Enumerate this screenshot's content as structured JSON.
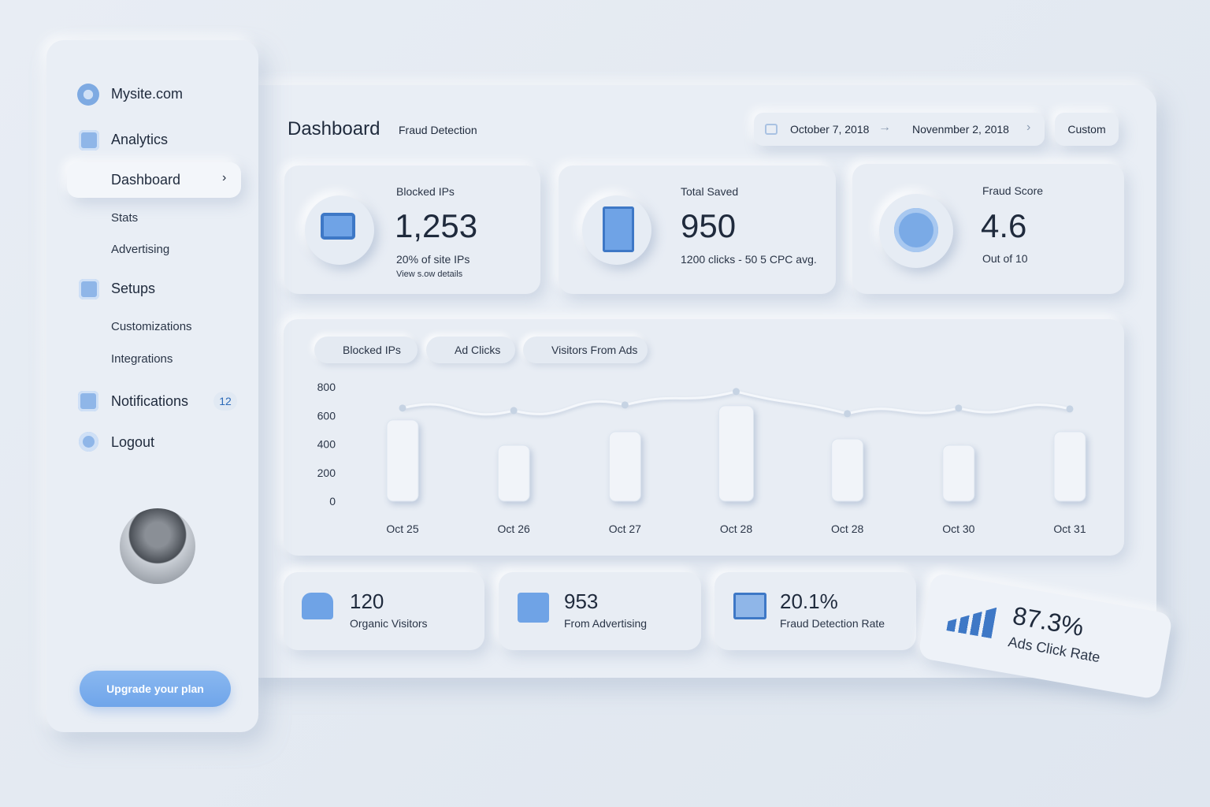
{
  "sidebar": {
    "brand": "Mysite.com",
    "nav": [
      "Analytics",
      "Dashboard",
      "Stats",
      "Advertising",
      "Setups",
      "Customizations",
      "Integrations",
      "Notifications",
      "Logout"
    ],
    "notifications_badge": "12",
    "upgrade_button": "Upgrade your plan"
  },
  "header": {
    "title": "Dashboard",
    "subtitle": "Fraud Detection",
    "date_start": "October 7, 2018",
    "date_end": "Novenmber 2, 2018",
    "range_button": "Custom"
  },
  "cards": [
    {
      "label": "Blocked IPs",
      "value": "1,253",
      "note": "20% of site IPs",
      "link": "View s.ow details"
    },
    {
      "label": "Total Saved",
      "value": "950",
      "note": "1200 clicks - 50 5 CPC avg."
    },
    {
      "label": "Fraud Score",
      "value": "4.6",
      "note": "Out of 10"
    }
  ],
  "chart": {
    "categories": [
      "Oct 25",
      "Oct 26",
      "Oct 27",
      "Oct 28",
      "Oct 28",
      "Oct 30",
      "Oct 31"
    ],
    "series": [
      {
        "name": "Blocked IPs",
        "type": "bar",
        "color": "#f1f4f9",
        "values": [
          569,
          392,
          486,
          668,
          436,
          392,
          486
        ]
      },
      {
        "name": "Ad Clicks",
        "type": "line",
        "color": "#f4f7fb",
        "values": [
          652,
          635,
          674,
          768,
          613,
          652,
          646
        ]
      },
      {
        "name": "Visitors From Ads",
        "type": "line",
        "color": "#c6d3e3",
        "values": [
          null,
          null,
          null,
          null,
          null,
          null,
          null
        ]
      }
    ],
    "ylim": [
      0,
      800
    ],
    "yticks": [
      0,
      200,
      400,
      600,
      800
    ]
  },
  "stats": [
    {
      "value": "120",
      "label": "Organic Visitors"
    },
    {
      "value": "953",
      "label": "From Advertising"
    },
    {
      "value": "20.1%",
      "label": "Fraud Detection Rate"
    },
    {
      "value": "87.3%",
      "label": "Ads Click Rate"
    }
  ]
}
